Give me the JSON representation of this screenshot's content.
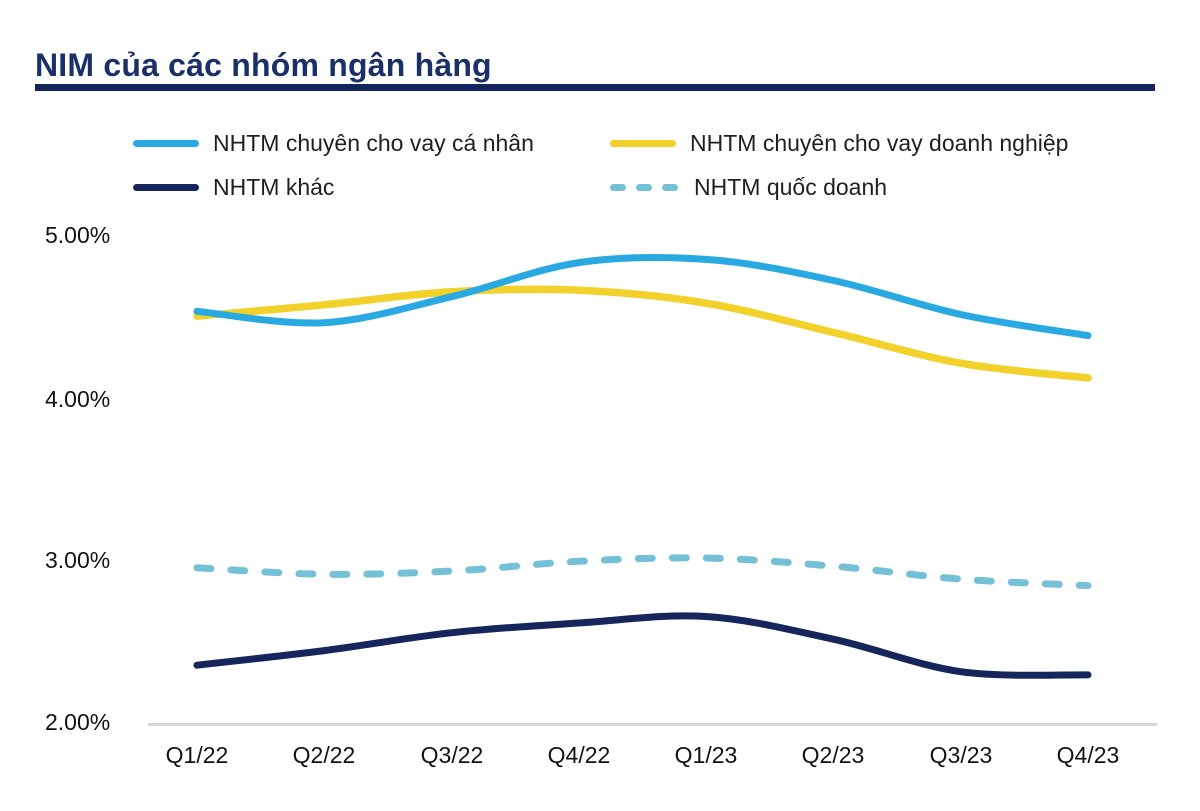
{
  "title": "NIM của các nhóm ngân hàng",
  "chart_data": {
    "type": "line",
    "title": "NIM của các nhóm ngân hàng",
    "categories": [
      "Q1/22",
      "Q2/22",
      "Q3/22",
      "Q4/22",
      "Q1/23",
      "Q2/23",
      "Q3/23",
      "Q4/23"
    ],
    "series": [
      {
        "name": "NHTM chuyên cho vay cá nhân",
        "color": "#29A9E1",
        "dash": "solid",
        "values": [
          4.53,
          4.46,
          4.62,
          4.83,
          4.85,
          4.72,
          4.51,
          4.38
        ]
      },
      {
        "name": "NHTM chuyên cho vay doanh nghiệp",
        "color": "#F2D12B",
        "dash": "solid",
        "values": [
          4.5,
          4.57,
          4.65,
          4.66,
          4.58,
          4.4,
          4.21,
          4.12
        ]
      },
      {
        "name": "NHTM khác",
        "color": "#16265C",
        "dash": "solid",
        "values": [
          2.35,
          2.44,
          2.55,
          2.61,
          2.65,
          2.51,
          2.31,
          2.29
        ]
      },
      {
        "name": "NHTM quốc doanh",
        "color": "#74C0D6",
        "dash": "dashed",
        "values": [
          2.95,
          2.91,
          2.93,
          2.99,
          3.01,
          2.96,
          2.88,
          2.84
        ]
      }
    ],
    "xlabel": "",
    "ylabel": "",
    "ylim": [
      2.0,
      5.0
    ],
    "y_ticks": [
      "5.00%",
      "4.00%",
      "3.00%",
      "2.00%"
    ],
    "grid": "off",
    "legend_position": "top"
  },
  "colors": {
    "title": "#1b3068",
    "underline": "#14255d",
    "axis_text": "#121212",
    "baseline": "#d8d8d8"
  }
}
